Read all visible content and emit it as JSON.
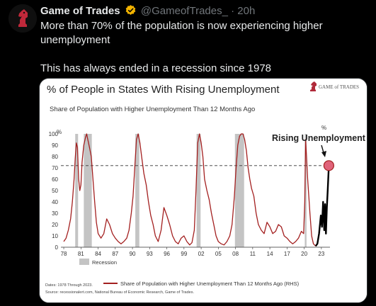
{
  "tweet": {
    "author_name": "Game of Trades",
    "handle": "@GameofTrades_",
    "separator": "·",
    "time": "20h",
    "text_line1": "More than 70% of the population is now experiencing higher unemployment",
    "text_line2": "This has always ended in a recession since 1978"
  },
  "icons": {
    "verified": "verified-badge-icon",
    "avatar": "knight-chess-logo-icon",
    "brand_logo": "game-of-trades-logo-icon"
  },
  "colors": {
    "series": "#a31f1f",
    "latest": "#000000",
    "recession": "#c4c4c4",
    "highlight": "#e0637a",
    "verified": "#f4b400"
  },
  "chart_data": {
    "type": "line",
    "title": "% of People in States With Rising Unemployment",
    "subtitle": "Share of Population with Higher Unemployment Than 12 Months Ago",
    "brand": "GAME of TRADES",
    "y_unit_left": "%",
    "y_unit_right": "%",
    "ylim": [
      0,
      100
    ],
    "yticks": [
      0,
      10,
      20,
      30,
      40,
      50,
      60,
      70,
      80,
      90,
      100
    ],
    "xlim": [
      1977.5,
      2024.5
    ],
    "xtick_labels": [
      "78",
      "81",
      "84",
      "87",
      "90",
      "93",
      "96",
      "99",
      "02",
      "05",
      "08",
      "11",
      "14",
      "17",
      "20",
      "23"
    ],
    "xtick_years": [
      1978,
      1981,
      1984,
      1987,
      1990,
      1993,
      1996,
      1999,
      2002,
      2005,
      2008,
      2011,
      2014,
      2017,
      2020,
      2023
    ],
    "threshold": 72,
    "annotation": "Rising Unemployment",
    "recessions": [
      [
        1980.0,
        1980.5
      ],
      [
        1981.5,
        1982.9
      ],
      [
        1990.5,
        1991.2
      ],
      [
        2001.2,
        2001.9
      ],
      [
        2007.9,
        2009.5
      ],
      [
        2020.1,
        2020.4
      ]
    ],
    "legend": {
      "recession": "Recession",
      "series": "Share of Population with Higher Unemployment Than 12 Months Ago (RHS)"
    },
    "notes": "Dates: 1978 Through 2023.",
    "source": "Source: recessionalert.com, National Bureau of Economic Research, Game of Trades.",
    "series": [
      {
        "name": "Share of Population with Higher Unemployment Than 12 Months Ago (RHS)",
        "x": [
          1978.0,
          1978.4,
          1978.8,
          1979.2,
          1979.5,
          1979.8,
          1980.0,
          1980.2,
          1980.4,
          1980.6,
          1980.8,
          1981.0,
          1981.2,
          1981.5,
          1981.8,
          1982.0,
          1982.2,
          1982.5,
          1982.8,
          1983.1,
          1983.4,
          1983.7,
          1984.0,
          1984.5,
          1985.0,
          1985.5,
          1986.0,
          1986.5,
          1987.0,
          1987.5,
          1988.0,
          1988.5,
          1989.0,
          1989.4,
          1989.8,
          1990.1,
          1990.4,
          1990.7,
          1991.0,
          1991.3,
          1991.6,
          1992.0,
          1992.4,
          1992.8,
          1993.2,
          1993.6,
          1994.0,
          1994.5,
          1995.0,
          1995.5,
          1996.0,
          1996.5,
          1997.0,
          1997.5,
          1998.0,
          1998.5,
          1999.0,
          1999.5,
          2000.0,
          2000.4,
          2000.8,
          2001.1,
          2001.4,
          2001.7,
          2002.0,
          2002.3,
          2002.6,
          2003.0,
          2003.4,
          2003.8,
          2004.2,
          2004.6,
          2005.0,
          2005.5,
          2006.0,
          2006.5,
          2007.0,
          2007.4,
          2007.8,
          2008.1,
          2008.4,
          2008.7,
          2009.0,
          2009.3,
          2009.6,
          2009.9,
          2010.2,
          2010.5,
          2010.8,
          2011.2,
          2011.6,
          2012.0,
          2012.5,
          2013.0,
          2013.5,
          2014.0,
          2014.5,
          2015.0,
          2015.5,
          2016.0,
          2016.5,
          2017.0,
          2017.5,
          2018.0,
          2018.5,
          2019.0,
          2019.5,
          2019.9,
          2020.1,
          2020.25,
          2020.4,
          2020.6,
          2020.8,
          2021.0,
          2021.3,
          2021.6,
          2022.0
        ],
        "values": [
          5,
          8,
          15,
          25,
          40,
          60,
          78,
          92,
          88,
          60,
          50,
          55,
          75,
          90,
          97,
          100,
          95,
          88,
          80,
          60,
          40,
          22,
          12,
          8,
          12,
          25,
          20,
          12,
          8,
          5,
          3,
          5,
          8,
          15,
          30,
          45,
          70,
          95,
          100,
          92,
          80,
          65,
          55,
          40,
          28,
          20,
          10,
          5,
          15,
          35,
          28,
          20,
          10,
          5,
          3,
          8,
          10,
          5,
          2,
          4,
          15,
          50,
          92,
          100,
          92,
          80,
          60,
          50,
          42,
          30,
          20,
          10,
          5,
          3,
          2,
          5,
          10,
          20,
          45,
          70,
          90,
          98,
          100,
          100,
          95,
          85,
          70,
          60,
          52,
          45,
          30,
          20,
          15,
          12,
          22,
          18,
          12,
          14,
          20,
          18,
          10,
          8,
          5,
          3,
          5,
          8,
          14,
          12,
          40,
          95,
          80,
          60,
          45,
          30,
          10,
          3,
          1
        ]
      },
      {
        "name": "Latest",
        "x": [
          2022.0,
          2022.3,
          2022.6,
          2022.9,
          2023.1,
          2023.3,
          2023.5,
          2023.65,
          2023.8,
          2023.95,
          2024.1,
          2024.3
        ],
        "values": [
          1,
          3,
          12,
          28,
          18,
          40,
          15,
          38,
          12,
          35,
          50,
          72
        ]
      }
    ]
  }
}
